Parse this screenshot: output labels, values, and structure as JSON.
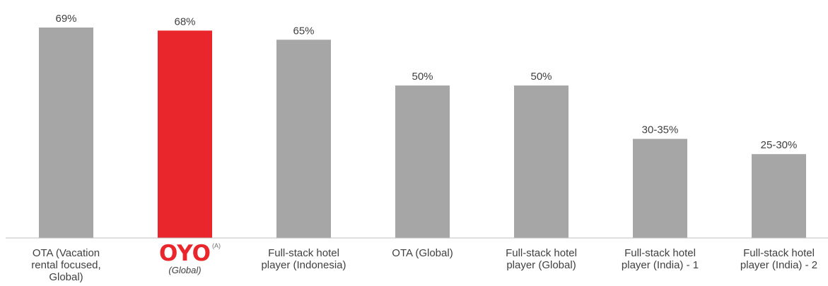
{
  "chart_data": {
    "type": "bar",
    "categories": [
      "OTA (Vacation rental focused, Global)",
      "OYO (Global)",
      "Full-stack hotel player (Indonesia)",
      "OTA (Global)",
      "Full-stack hotel player (Global)",
      "Full-stack hotel player (India) - 1",
      "Full-stack hotel player (India) - 2"
    ],
    "category_lines": [
      [
        "OTA (Vacation",
        "rental focused,",
        "Global)"
      ],
      [
        "OYO",
        "(Global)"
      ],
      [
        "Full-stack hotel",
        "player (Indonesia)"
      ],
      [
        "OTA (Global)"
      ],
      [
        "Full-stack hotel",
        "player (Global)"
      ],
      [
        "Full-stack hotel",
        "player (India) - 1"
      ],
      [
        "Full-stack hotel",
        "player (India) - 2"
      ]
    ],
    "values": [
      69,
      68,
      65,
      50,
      50,
      32.5,
      27.5
    ],
    "value_labels": [
      "69%",
      "68%",
      "65%",
      "50%",
      "50%",
      "30-35%",
      "25-30%"
    ],
    "highlight_index": 1,
    "oyo_superscript": "(A)",
    "colors": {
      "bar": "#a6a6a6",
      "highlight": "#e8262b",
      "text": "#404040",
      "axis": "#bfbfbf"
    },
    "ylim": [
      0,
      69
    ],
    "grid": false,
    "legend": "none",
    "title": "",
    "xlabel": "",
    "ylabel": ""
  }
}
